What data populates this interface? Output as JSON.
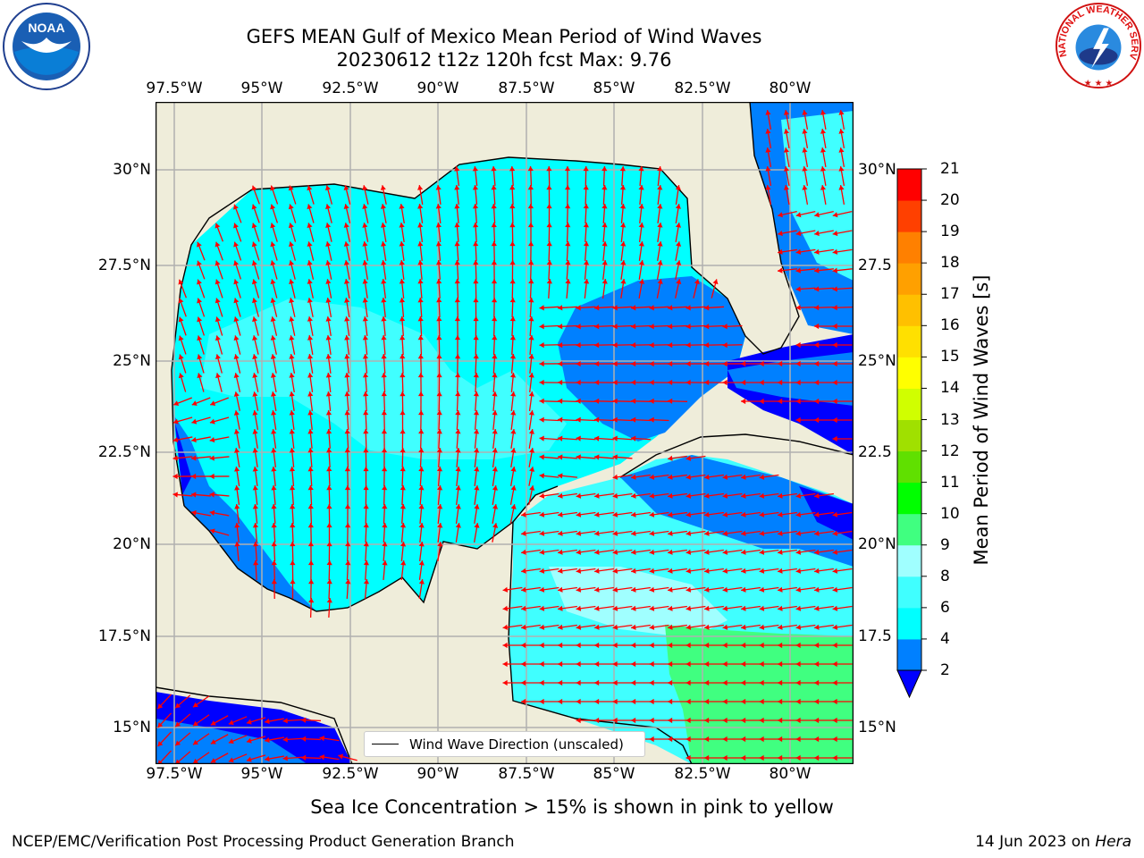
{
  "title_line1": "GEFS MEAN Gulf of Mexico Mean Period of Wind Waves",
  "title_line2": "20230612 t12z 120h fcst   Max: 9.76",
  "axes": {
    "lon_ticks": [
      "97.5°W",
      "95°W",
      "92.5°W",
      "90°W",
      "87.5°W",
      "85°W",
      "82.5°W",
      "80°W"
    ],
    "lat_ticks": [
      "30°N",
      "27.5°N",
      "25°N",
      "22.5°N",
      "20°N",
      "17.5°N",
      "15°N"
    ],
    "right_lat_ticks": [
      "30°N",
      "27.5",
      "25°N",
      "22.5",
      "20°N",
      "17.5",
      "15°N"
    ]
  },
  "colorbar": {
    "label": "Mean Period of Wind Waves [s]",
    "ticks": [
      "2",
      "4",
      "6",
      "8",
      "9",
      "10",
      "11",
      "12",
      "13",
      "14",
      "15",
      "16",
      "17",
      "18",
      "19",
      "20",
      "21"
    ],
    "colors": [
      "#0000ff",
      "#0080ff",
      "#00ffff",
      "#40ffff",
      "#a0ffff",
      "#40ff80",
      "#00ff00",
      "#60e000",
      "#a0e000",
      "#d0ff00",
      "#ffff00",
      "#ffe000",
      "#ffc000",
      "#ffa000",
      "#ff8000",
      "#ff4000",
      "#ff0000"
    ],
    "extend": "min"
  },
  "legend": {
    "label": "Wind Wave Direction (unscaled)"
  },
  "note": "Sea Ice Concentration > 15% is shown in pink to yellow",
  "footer": {
    "left": "NCEP/EMC/Verification Post Processing Product Generation Branch",
    "right_date": "14 Jun 2023 on ",
    "right_machine": "Hera"
  },
  "logos": {
    "noaa_text": "NOAA",
    "nws_text": "NATIONAL WEATHER SERVICE"
  }
}
